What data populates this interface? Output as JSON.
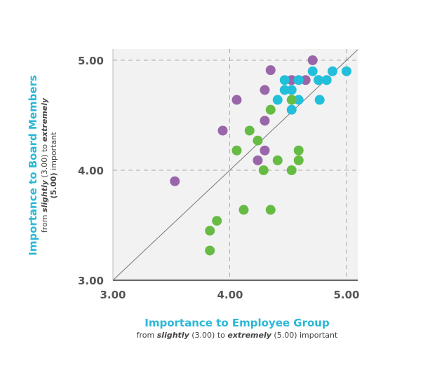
{
  "chart_data": {
    "type": "scatter",
    "xlabel": "Importance to Employee Group",
    "xlabel_sub": {
      "pre": "from ",
      "w1": "slightly",
      "mid": " (3.00) to ",
      "w2": "extremely",
      "post": " (5.00) important"
    },
    "ylabel": "Importance to Board Members",
    "ylabel_sub1": {
      "pre": "from ",
      "w1": "slightly",
      "mid": " (3.00) to ",
      "w2": "extremely"
    },
    "ylabel_sub2": {
      "pre": "(5.00)",
      "post": " important"
    },
    "xlim": [
      3,
      5
    ],
    "ylim": [
      3,
      5
    ],
    "xticks": [
      "3.00",
      "4.00",
      "5.00"
    ],
    "yticks": [
      "3.00",
      "4.00",
      "5.00"
    ],
    "grid": "dashed at 4.00 and 5.00",
    "reference_line": "y = x",
    "series": [
      {
        "name": "purple",
        "color": "#9966aa",
        "points": [
          [
            3.53,
            3.9
          ],
          [
            4.06,
            4.64
          ],
          [
            3.94,
            4.36
          ],
          [
            4.35,
            4.91
          ],
          [
            4.3,
            4.73
          ],
          [
            4.3,
            4.45
          ],
          [
            4.3,
            4.18
          ],
          [
            4.24,
            4.09
          ],
          [
            4.71,
            5.0
          ],
          [
            4.53,
            4.82
          ],
          [
            4.65,
            4.82
          ]
        ]
      },
      {
        "name": "cyan",
        "color": "#22bfdb",
        "points": [
          [
            4.71,
            4.9
          ],
          [
            4.88,
            4.9
          ],
          [
            5.0,
            4.9
          ],
          [
            4.47,
            4.82
          ],
          [
            4.59,
            4.82
          ],
          [
            4.76,
            4.82
          ],
          [
            4.83,
            4.82
          ],
          [
            4.47,
            4.73
          ],
          [
            4.53,
            4.73
          ],
          [
            4.41,
            4.64
          ],
          [
            4.59,
            4.64
          ],
          [
            4.77,
            4.64
          ],
          [
            4.53,
            4.55
          ]
        ]
      },
      {
        "name": "green",
        "color": "#66bb44",
        "points": [
          [
            4.53,
            4.64
          ],
          [
            4.35,
            4.55
          ],
          [
            4.17,
            4.36
          ],
          [
            4.24,
            4.27
          ],
          [
            4.06,
            4.18
          ],
          [
            4.59,
            4.18
          ],
          [
            4.41,
            4.09
          ],
          [
            4.59,
            4.09
          ],
          [
            4.29,
            4.0
          ],
          [
            4.53,
            4.0
          ],
          [
            4.12,
            3.64
          ],
          [
            4.35,
            3.64
          ],
          [
            3.89,
            3.54
          ],
          [
            3.83,
            3.45
          ],
          [
            3.83,
            3.27
          ]
        ]
      }
    ]
  }
}
